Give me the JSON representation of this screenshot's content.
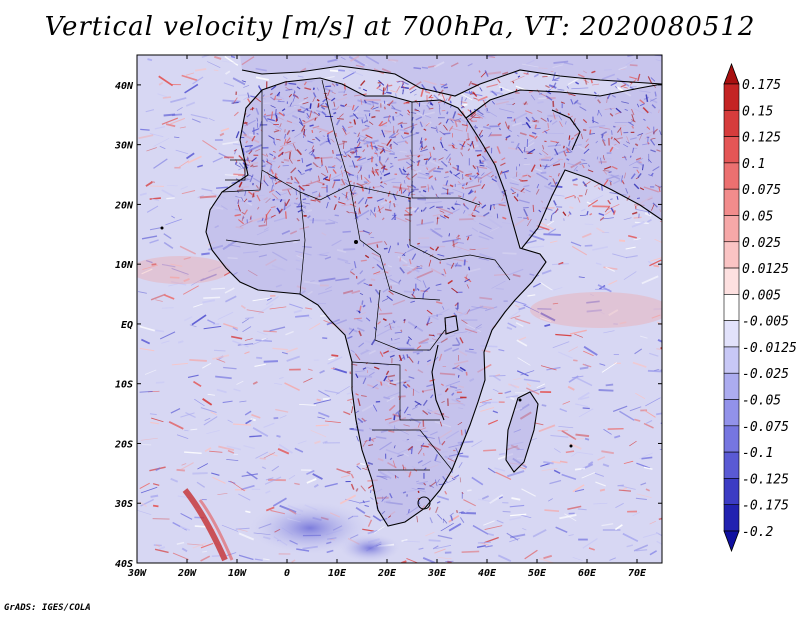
{
  "title": "Vertical velocity [m/s] at 700hPa, VT: 2020080512",
  "credit": "GrADS: IGES/COLA",
  "map": {
    "lon_range": [
      -30,
      75
    ],
    "lat_range": [
      -40,
      45
    ],
    "lon_ticks": [
      {
        "value": -30,
        "label": "30W"
      },
      {
        "value": -20,
        "label": "20W"
      },
      {
        "value": -10,
        "label": "10W"
      },
      {
        "value": 0,
        "label": "0"
      },
      {
        "value": 10,
        "label": "10E"
      },
      {
        "value": 20,
        "label": "20E"
      },
      {
        "value": 30,
        "label": "30E"
      },
      {
        "value": 40,
        "label": "40E"
      },
      {
        "value": 50,
        "label": "50E"
      },
      {
        "value": 60,
        "label": "60E"
      },
      {
        "value": 70,
        "label": "70E"
      }
    ],
    "lat_ticks": [
      {
        "value": 40,
        "label": "40N"
      },
      {
        "value": 30,
        "label": "30N"
      },
      {
        "value": 20,
        "label": "20N"
      },
      {
        "value": 10,
        "label": "10N"
      },
      {
        "value": 0,
        "label": "EQ"
      },
      {
        "value": -10,
        "label": "10S"
      },
      {
        "value": -20,
        "label": "20S"
      },
      {
        "value": -30,
        "label": "30S"
      },
      {
        "value": -40,
        "label": "40S"
      }
    ]
  },
  "colorbar": {
    "levels": [
      "0.175",
      "0.15",
      "0.125",
      "0.1",
      "0.075",
      "0.05",
      "0.025",
      "0.0125",
      "0.005",
      "-0.005",
      "-0.0125",
      "-0.025",
      "-0.05",
      "-0.075",
      "-0.1",
      "-0.125",
      "-0.175",
      "-0.2"
    ],
    "colors": [
      "#a81010",
      "#c42424",
      "#d63c3c",
      "#e45656",
      "#ec7070",
      "#f28c8c",
      "#f6a8a8",
      "#fac4c4",
      "#fde0e0",
      "#ffffff",
      "#e2e2fb",
      "#c8c8f6",
      "#acacf0",
      "#9292ea",
      "#7676e0",
      "#5a5ad4",
      "#3c3cc4",
      "#2222b0",
      "#1010a0"
    ]
  },
  "palette": {
    "red": "#d64848",
    "blue": "#5a5ad4",
    "coast": "#000000"
  }
}
